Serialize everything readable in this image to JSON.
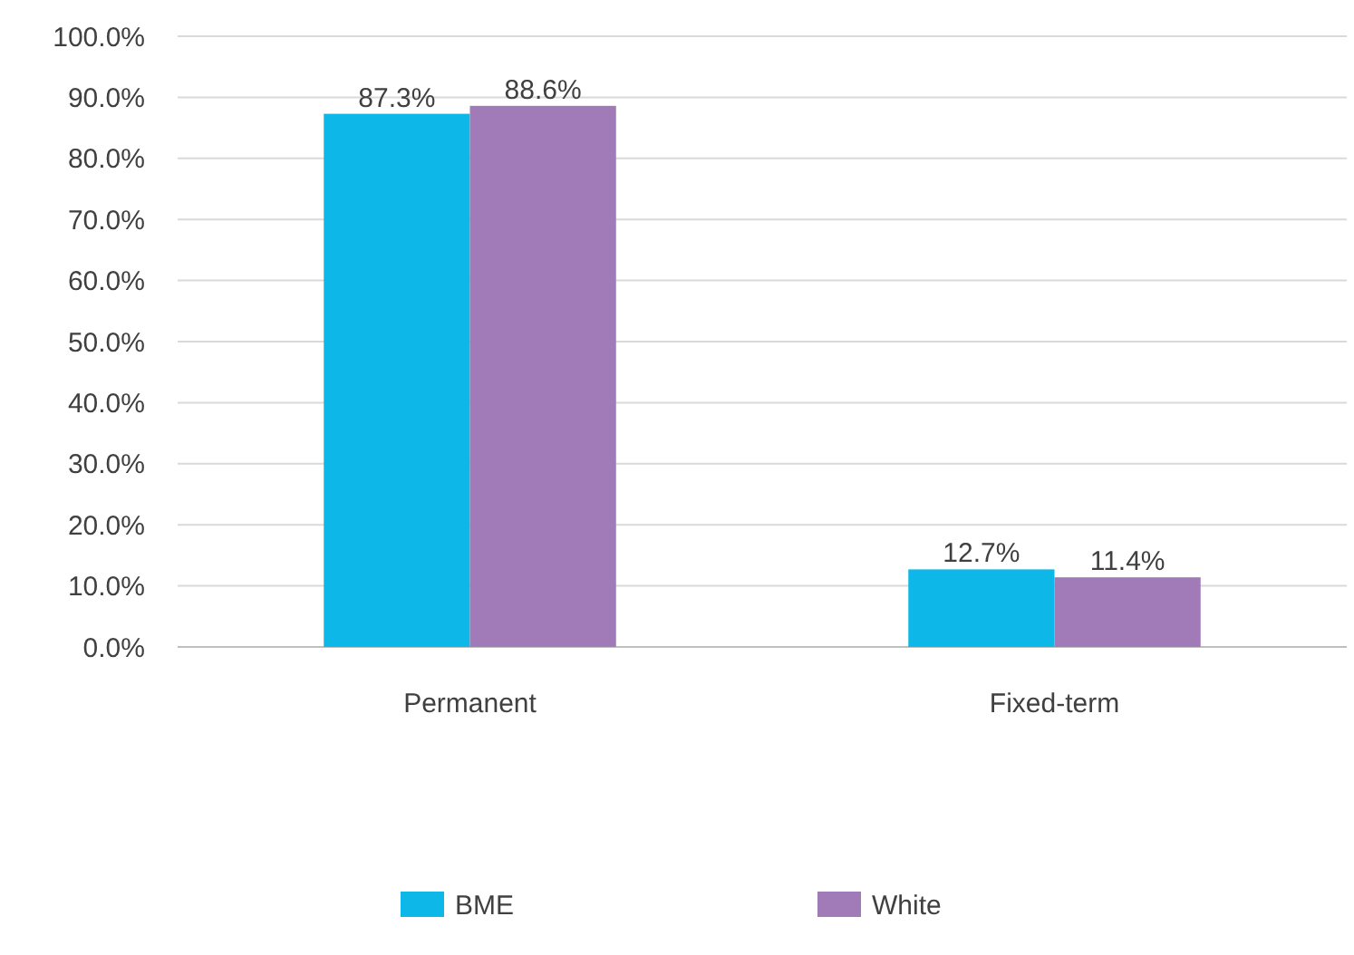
{
  "chart_data": {
    "type": "bar",
    "categories": [
      "Permanent",
      "Fixed-term"
    ],
    "series": [
      {
        "name": "BME",
        "color": "#0db8e8",
        "values": [
          87.3,
          12.7
        ],
        "value_labels": [
          "87.3%",
          "12.7%"
        ]
      },
      {
        "name": "White",
        "color": "#a17bb8",
        "values": [
          88.6,
          11.4
        ],
        "value_labels": [
          "88.6%",
          "11.4%"
        ]
      }
    ],
    "ylim": [
      0,
      100
    ],
    "yticks": [
      {
        "value": 0,
        "label": "0.0%"
      },
      {
        "value": 10,
        "label": "10.0%"
      },
      {
        "value": 20,
        "label": "20.0%"
      },
      {
        "value": 30,
        "label": "30.0%"
      },
      {
        "value": 40,
        "label": "40.0%"
      },
      {
        "value": 50,
        "label": "50.0%"
      },
      {
        "value": 60,
        "label": "60.0%"
      },
      {
        "value": 70,
        "label": "70.0%"
      },
      {
        "value": 80,
        "label": "80.0%"
      },
      {
        "value": 90,
        "label": "90.0%"
      },
      {
        "value": 100,
        "label": "100.0%"
      }
    ],
    "grid": "y",
    "legend": "bottom"
  }
}
